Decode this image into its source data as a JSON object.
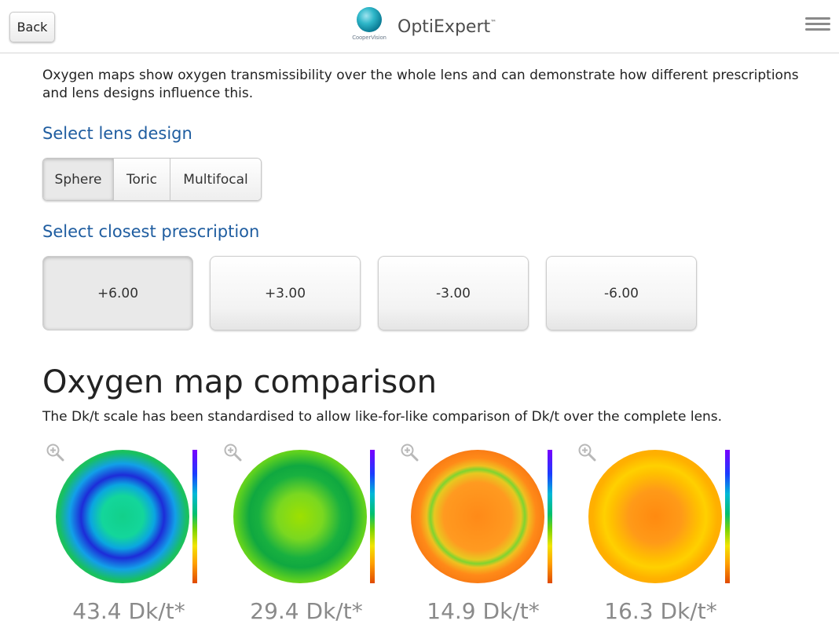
{
  "header": {
    "back_label": "Back",
    "logo_text": "CooperVision",
    "app_title": "OptiExpert",
    "trademark": "™"
  },
  "intro_text": "Oxygen maps show oxygen transmissibility over the whole lens and can demonstrate how different prescriptions and lens designs influence this.",
  "lens_design": {
    "label": "Select lens design",
    "options": [
      "Sphere",
      "Toric",
      "Multifocal"
    ],
    "selected": "Sphere"
  },
  "prescription": {
    "label": "Select closest prescription",
    "options": [
      "+6.00",
      "+3.00",
      "-3.00",
      "-6.00"
    ],
    "selected": "+6.00"
  },
  "comparison": {
    "title": "Oxygen map comparison",
    "subtitle": "The Dk/t scale has been standardised to allow like-for-like comparison of Dk/t over the complete lens.",
    "maps": [
      {
        "value": "43.4 Dk/t*",
        "ring_color": "#1d2cd8",
        "center_color": "#12d08a",
        "outer_color": "#18c060"
      },
      {
        "value": "29.4 Dk/t*",
        "ring_color": "#0fae40",
        "center_color": "#9ee000",
        "outer_color": "#6fce20"
      },
      {
        "value": "14.9 Dk/t*",
        "ring_color": "#7ed430",
        "center_color": "#ff8a18",
        "outer_color": "#f26a10"
      },
      {
        "value": "16.3 Dk/t*",
        "ring_color": "#ffd000",
        "center_color": "#ff9618",
        "outer_color": "#ffb000"
      }
    ]
  }
}
